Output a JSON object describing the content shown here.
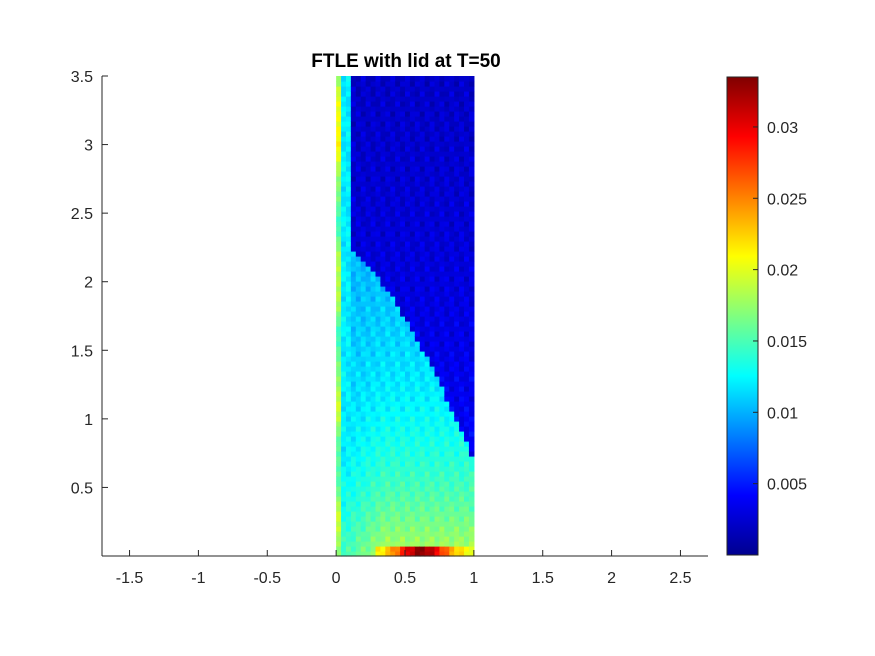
{
  "chart_data": {
    "type": "heatmap",
    "title": "FTLE with lid at T=50",
    "xlabel": "",
    "ylabel": "",
    "xlim": [
      -1.7,
      2.7
    ],
    "ylim": [
      0,
      3.5
    ],
    "x_ticks": [
      -1.5,
      -1,
      -0.5,
      0,
      0.5,
      1,
      1.5,
      2,
      2.5
    ],
    "x_tick_labels": [
      "-1.5",
      "-1",
      "-0.5",
      "0",
      "0.5",
      "1",
      "1.5",
      "2",
      "2.5"
    ],
    "y_ticks": [
      0.5,
      1,
      1.5,
      2,
      2.5,
      3,
      3.5
    ],
    "y_tick_labels": [
      "0.5",
      "1",
      "1.5",
      "2",
      "2.5",
      "3",
      "3.5"
    ],
    "domain": {
      "x": [
        0,
        1
      ],
      "y": [
        0,
        3.5
      ]
    },
    "colormap": "jet",
    "colorbar": {
      "range": [
        0,
        0.0335
      ],
      "ticks": [
        0.005,
        0.01,
        0.015,
        0.02,
        0.025,
        0.03
      ],
      "tick_labels": [
        "0.005",
        "0.01",
        "0.015",
        "0.02",
        "0.025",
        "0.03"
      ]
    },
    "grid": false
  }
}
